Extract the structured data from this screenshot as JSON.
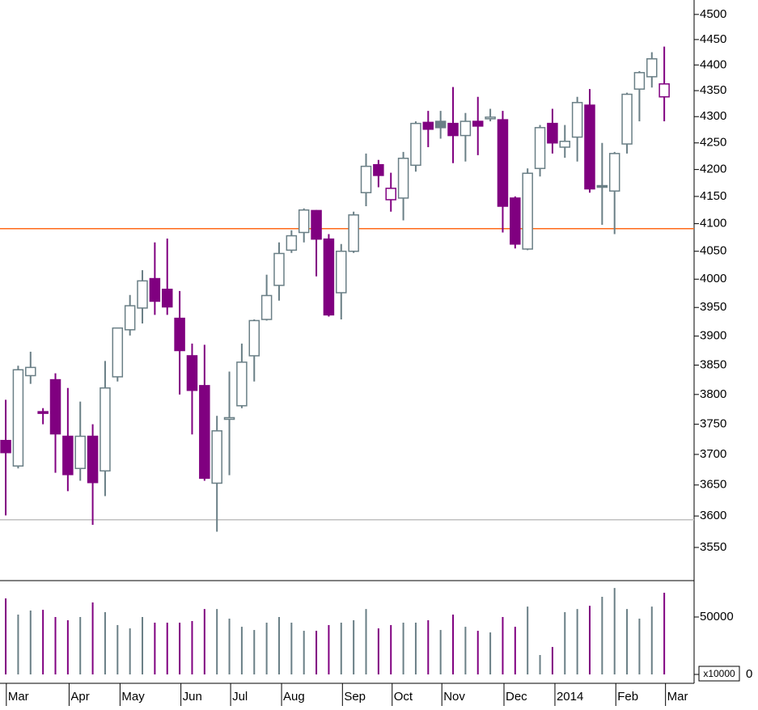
{
  "chart_data": {
    "type": "candlestick",
    "open": [
      3723,
      3681,
      3832,
      3771,
      3825,
      3730,
      3677,
      3730,
      3673,
      3830,
      3911,
      3949,
      4001,
      3982,
      3931,
      3866,
      3815,
      3653,
      3759,
      3781,
      3866,
      3929,
      3989,
      4052,
      4084,
      4124,
      4072,
      3976,
      4050,
      4157,
      4209,
      4144,
      4147,
      4208,
      4289,
      4291,
      4287,
      4264,
      4291,
      4296,
      4294,
      4147,
      4054,
      4202,
      4287,
      4242,
      4261,
      4322,
      4170,
      4160,
      4248,
      4353,
      4377,
      4338
    ],
    "high": [
      3791,
      3849,
      3873,
      3777,
      3836,
      3811,
      3788,
      3750,
      3857,
      3915,
      3972,
      4016,
      4066,
      4073,
      3979,
      3887,
      3885,
      3764,
      3839,
      3887,
      3929,
      4008,
      4066,
      4088,
      4128,
      4125,
      4081,
      4063,
      4122,
      4230,
      4218,
      4194,
      4233,
      4291,
      4311,
      4311,
      4357,
      4307,
      4338,
      4315,
      4311,
      4150,
      4202,
      4284,
      4315,
      4284,
      4338,
      4353,
      4250,
      4233,
      4346,
      4388,
      4425,
      4436
    ],
    "low": [
      3601,
      3677,
      3818,
      3750,
      3670,
      3640,
      3657,
      3586,
      3632,
      3822,
      3901,
      3922,
      3937,
      3937,
      3800,
      3733,
      3657,
      3575,
      3666,
      3777,
      3822,
      3927,
      3962,
      4047,
      4066,
      4005,
      3934,
      3929,
      4047,
      4132,
      4167,
      4122,
      4106,
      4196,
      4242,
      4258,
      4212,
      4215,
      4227,
      4291,
      4084,
      4055,
      4052,
      4187,
      4230,
      4222,
      4215,
      4157,
      4098,
      4081,
      4230,
      4291,
      4356,
      4291
    ],
    "close": [
      3703,
      3842,
      3846,
      3769,
      3734,
      3667,
      3730,
      3654,
      3811,
      3914,
      3953,
      3997,
      3961,
      3951,
      3875,
      3807,
      3661,
      3739,
      3761,
      3855,
      3927,
      3971,
      4046,
      4078,
      4125,
      4072,
      3937,
      4050,
      4116,
      4206,
      4189,
      4165,
      4221,
      4287,
      4276,
      4279,
      4264,
      4291,
      4282,
      4299,
      4132,
      4063,
      4193,
      4279,
      4250,
      4253,
      4327,
      4164,
      4168,
      4230,
      4343,
      4385,
      4412,
      4363
    ],
    "volume": [
      66200,
      52100,
      55600,
      56300,
      50000,
      47200,
      50000,
      62700,
      54200,
      43000,
      40100,
      50000,
      45100,
      45100,
      45100,
      46500,
      57000,
      57000,
      48600,
      41500,
      38700,
      45100,
      50000,
      45100,
      38000,
      38000,
      43000,
      45100,
      47200,
      57000,
      40100,
      43000,
      45100,
      45100,
      47200,
      38700,
      52100,
      41500,
      38000,
      36600,
      50000,
      41500,
      59100,
      16900,
      23900,
      54200,
      57000,
      59800,
      67600,
      75300,
      57000,
      48600,
      59100,
      71100
    ],
    "up_color": "#6a7f86",
    "down_color": "#800080",
    "log_scale": true,
    "ylim": [
      3498,
      4529
    ],
    "yticks": [
      3550,
      3600,
      3650,
      3700,
      3750,
      3800,
      3850,
      3900,
      3950,
      4000,
      4050,
      4100,
      4150,
      4200,
      4250,
      4300,
      4350,
      4400,
      4450,
      4500
    ],
    "volume_ylim": [
      0,
      81700
    ],
    "volume_yticks": [
      0,
      50000
    ],
    "volume_multiplier_label": "x10000",
    "xlim": [
      -0.46,
      55.4
    ],
    "xticks": [
      {
        "value": 0.05,
        "label": "Mar"
      },
      {
        "value": 5.1,
        "label": "Apr"
      },
      {
        "value": 9.2,
        "label": "May"
      },
      {
        "value": 14.1,
        "label": "Jun"
      },
      {
        "value": 18.1,
        "label": "Jul"
      },
      {
        "value": 22.2,
        "label": "Aug"
      },
      {
        "value": 27.1,
        "label": "Sep"
      },
      {
        "value": 31.1,
        "label": "Oct"
      },
      {
        "value": 35.1,
        "label": "Nov"
      },
      {
        "value": 40.1,
        "label": "Dec"
      },
      {
        "value": 44.2,
        "label": "2014"
      },
      {
        "value": 49.1,
        "label": "Feb"
      },
      {
        "value": 53.1,
        "label": "Mar"
      }
    ],
    "hlines": [
      {
        "value": 4091,
        "color": "#ff6a1a"
      },
      {
        "value": 3594,
        "color": "#c0c0c0"
      }
    ]
  }
}
